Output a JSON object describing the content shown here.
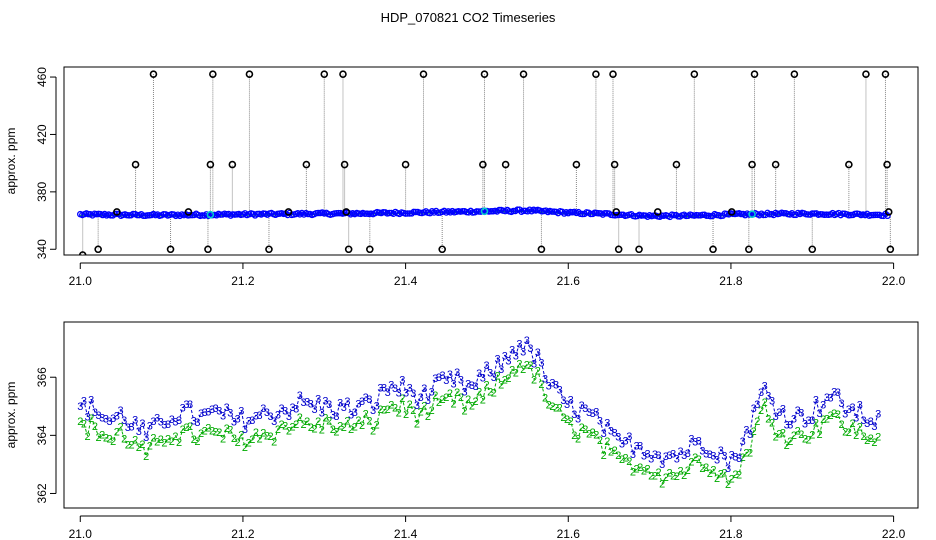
{
  "title": "HDP_070821  CO2 Timeseries",
  "chart_data": [
    {
      "type": "line",
      "ylabel": "approx. ppm",
      "xlabel": "",
      "xlim": [
        20.98,
        22.03
      ],
      "ylim": [
        336,
        467
      ],
      "xticks": [
        "21.0",
        "21.2",
        "21.4",
        "21.6",
        "21.8",
        "22.0"
      ],
      "xtick_values": [
        21.0,
        21.2,
        21.4,
        21.6,
        21.8,
        22.0
      ],
      "yticks": [
        "340",
        "380",
        "420",
        "460"
      ],
      "ytick_values": [
        340,
        380,
        420,
        460
      ],
      "baseline_anchors": [
        [
          21.0,
          364.2
        ],
        [
          21.1,
          363.8
        ],
        [
          21.2,
          364.3
        ],
        [
          21.3,
          364.8
        ],
        [
          21.35,
          365.0
        ],
        [
          21.4,
          365.5
        ],
        [
          21.5,
          366.5
        ],
        [
          21.55,
          367.0
        ],
        [
          21.6,
          365.5
        ],
        [
          21.65,
          364.5
        ],
        [
          21.7,
          363.2
        ],
        [
          21.75,
          363.4
        ],
        [
          21.8,
          364.2
        ],
        [
          21.85,
          364.6
        ],
        [
          21.9,
          364.8
        ],
        [
          21.95,
          364.4
        ],
        [
          21.99,
          364.0
        ]
      ],
      "spikes": [
        {
          "x": 21.003,
          "y": 336
        },
        {
          "x": 21.022,
          "y": 340
        },
        {
          "x": 21.045,
          "y": 366
        },
        {
          "x": 21.068,
          "y": 399
        },
        {
          "x": 21.09,
          "y": 462
        },
        {
          "x": 21.111,
          "y": 340
        },
        {
          "x": 21.133,
          "y": 366
        },
        {
          "x": 21.157,
          "y": 340
        },
        {
          "x": 21.16,
          "y": 399
        },
        {
          "x": 21.163,
          "y": 462
        },
        {
          "x": 21.187,
          "y": 399
        },
        {
          "x": 21.208,
          "y": 462
        },
        {
          "x": 21.232,
          "y": 340
        },
        {
          "x": 21.256,
          "y": 366
        },
        {
          "x": 21.278,
          "y": 399
        },
        {
          "x": 21.3,
          "y": 462
        },
        {
          "x": 21.323,
          "y": 462
        },
        {
          "x": 21.325,
          "y": 399
        },
        {
          "x": 21.327,
          "y": 366
        },
        {
          "x": 21.33,
          "y": 340
        },
        {
          "x": 21.356,
          "y": 340
        },
        {
          "x": 21.4,
          "y": 399
        },
        {
          "x": 21.422,
          "y": 462
        },
        {
          "x": 21.445,
          "y": 340
        },
        {
          "x": 21.495,
          "y": 399
        },
        {
          "x": 21.497,
          "y": 462
        },
        {
          "x": 21.523,
          "y": 399
        },
        {
          "x": 21.545,
          "y": 462
        },
        {
          "x": 21.567,
          "y": 340
        },
        {
          "x": 21.61,
          "y": 399
        },
        {
          "x": 21.634,
          "y": 462
        },
        {
          "x": 21.655,
          "y": 462
        },
        {
          "x": 21.657,
          "y": 399
        },
        {
          "x": 21.659,
          "y": 366
        },
        {
          "x": 21.662,
          "y": 340
        },
        {
          "x": 21.687,
          "y": 340
        },
        {
          "x": 21.71,
          "y": 366
        },
        {
          "x": 21.733,
          "y": 399
        },
        {
          "x": 21.755,
          "y": 462
        },
        {
          "x": 21.778,
          "y": 340
        },
        {
          "x": 21.801,
          "y": 366
        },
        {
          "x": 21.822,
          "y": 340
        },
        {
          "x": 21.826,
          "y": 399
        },
        {
          "x": 21.829,
          "y": 462
        },
        {
          "x": 21.855,
          "y": 399
        },
        {
          "x": 21.878,
          "y": 462
        },
        {
          "x": 21.9,
          "y": 340
        },
        {
          "x": 21.945,
          "y": 399
        },
        {
          "x": 21.966,
          "y": 462
        },
        {
          "x": 21.99,
          "y": 462
        },
        {
          "x": 21.992,
          "y": 399
        },
        {
          "x": 21.994,
          "y": 366
        },
        {
          "x": 21.996,
          "y": 340
        }
      ],
      "colors": {
        "series_points": "#0000ff",
        "filtered_points": "#00cccc",
        "green_line": "#00bb00",
        "spike_marker": "#000000",
        "spike_line": "#888888"
      }
    },
    {
      "type": "line",
      "ylabel": "approx. ppm",
      "xlabel": "",
      "xlim": [
        20.98,
        22.03
      ],
      "ylim": [
        361.5,
        367.9
      ],
      "xticks": [
        "21.0",
        "21.2",
        "21.4",
        "21.6",
        "21.8",
        "22.0"
      ],
      "xtick_values": [
        21.0,
        21.2,
        21.4,
        21.6,
        21.8,
        22.0
      ],
      "yticks": [
        "362",
        "364",
        "366"
      ],
      "ytick_values": [
        362,
        364,
        366
      ],
      "series": [
        {
          "marker": "3",
          "color": "#0000cc",
          "offset": 0.4
        },
        {
          "marker": "2",
          "color": "#00aa00",
          "offset": -0.25
        }
      ],
      "anchors": [
        [
          21.0,
          364.6
        ],
        [
          21.02,
          364.5
        ],
        [
          21.035,
          364.1
        ],
        [
          21.05,
          364.3
        ],
        [
          21.065,
          364.0
        ],
        [
          21.08,
          363.6
        ],
        [
          21.095,
          363.9
        ],
        [
          21.11,
          364.3
        ],
        [
          21.13,
          364.4
        ],
        [
          21.15,
          364.2
        ],
        [
          21.17,
          364.4
        ],
        [
          21.19,
          364.1
        ],
        [
          21.21,
          364.2
        ],
        [
          21.24,
          364.4
        ],
        [
          21.27,
          364.7
        ],
        [
          21.3,
          364.6
        ],
        [
          21.33,
          364.5
        ],
        [
          21.36,
          364.7
        ],
        [
          21.38,
          365.3
        ],
        [
          21.4,
          365.2
        ],
        [
          21.42,
          364.9
        ],
        [
          21.44,
          365.3
        ],
        [
          21.46,
          365.5
        ],
        [
          21.48,
          365.2
        ],
        [
          21.5,
          365.7
        ],
        [
          21.52,
          366.1
        ],
        [
          21.54,
          366.8
        ],
        [
          21.56,
          366.3
        ],
        [
          21.58,
          365.2
        ],
        [
          21.6,
          364.6
        ],
        [
          21.62,
          364.4
        ],
        [
          21.64,
          364.0
        ],
        [
          21.66,
          363.3
        ],
        [
          21.68,
          363.3
        ],
        [
          21.7,
          363.1
        ],
        [
          21.72,
          362.9
        ],
        [
          21.74,
          363.0
        ],
        [
          21.76,
          363.4
        ],
        [
          21.78,
          363.2
        ],
        [
          21.8,
          362.6
        ],
        [
          21.82,
          363.7
        ],
        [
          21.84,
          365.2
        ],
        [
          21.86,
          364.4
        ],
        [
          21.88,
          364.2
        ],
        [
          21.9,
          364.4
        ],
        [
          21.92,
          365.0
        ],
        [
          21.94,
          364.6
        ],
        [
          21.96,
          364.3
        ],
        [
          21.98,
          364.1
        ]
      ]
    }
  ]
}
